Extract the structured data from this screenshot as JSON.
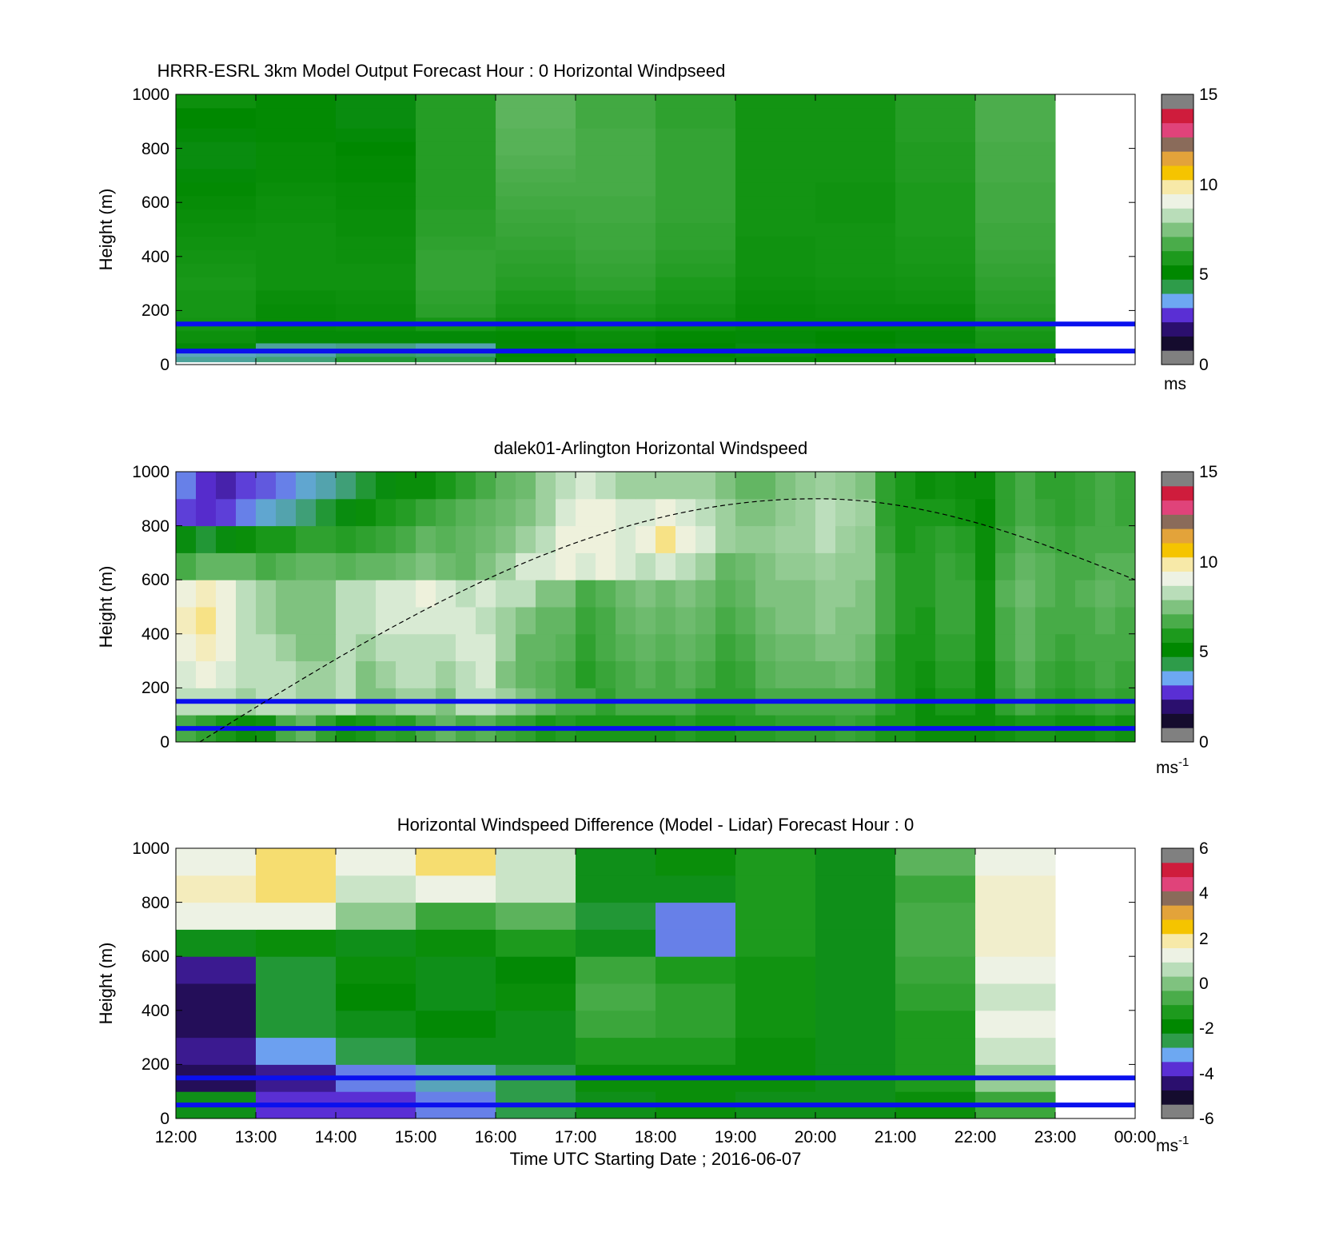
{
  "colors": {
    "ref_line": "#0a10ee",
    "frame": "#000000",
    "na_color": "#ffffff",
    "cmap_speed": [
      "#808080",
      "#150c2e",
      "#2b0f6e",
      "#5a2fd4",
      "#6da8f2",
      "#2e9c4a",
      "#008800",
      "#1d9a1d",
      "#4aac4a",
      "#7fc27f",
      "#b9ddb9",
      "#edf2e4",
      "#f7e9a8",
      "#f5c400",
      "#e3a33a",
      "#8a6b5a",
      "#e0437a",
      "#cf1c3c",
      "#808080"
    ],
    "cmap_diff": [
      "#808080",
      "#150c2e",
      "#2b0f6e",
      "#5a2fd4",
      "#6da8f2",
      "#2e9c4a",
      "#008800",
      "#1d9a1d",
      "#4aac4a",
      "#7fc27f",
      "#b9ddb9",
      "#edf2e4",
      "#f7e9a8",
      "#f5c400",
      "#e3a33a",
      "#8a6b5a",
      "#e0437a",
      "#cf1c3c",
      "#808080"
    ]
  },
  "xaxis": {
    "ticks": [
      "12:00",
      "13:00",
      "14:00",
      "15:00",
      "16:00",
      "17:00",
      "18:00",
      "19:00",
      "20:00",
      "21:00",
      "22:00",
      "23:00",
      "00:00"
    ],
    "label": "Time UTC  Starting Date ; 2016-06-07"
  },
  "chart_data": [
    {
      "type": "heatmap",
      "title": "HRRR-ESRL 3km Model Output   Forecast Hour : 0 Horizontal Windpseed",
      "ylabel": "Height (m)",
      "yticks": [
        "0",
        "200",
        "400",
        "600",
        "800",
        "1000"
      ],
      "ylim": [
        0,
        1000
      ],
      "xlim_hours": [
        12,
        24
      ],
      "colorbar": {
        "ticks": [
          "0",
          "5",
          "10",
          "15"
        ],
        "range": [
          0,
          15
        ],
        "unit": "ms",
        "unit_sup": ""
      },
      "reference_heights_m": [
        150,
        50
      ],
      "time_hours": [
        12,
        13,
        14,
        15,
        16,
        17,
        18,
        19,
        20,
        21,
        22
      ],
      "heights_m": [
        20,
        40,
        60,
        100,
        150,
        200,
        250,
        300,
        350,
        400,
        450,
        500,
        550,
        600,
        650,
        700,
        750,
        800,
        850,
        900,
        1000
      ],
      "values": [
        [
          3.3,
          3.5,
          4.0,
          3.8,
          4.8,
          5.1,
          4.9,
          4.6,
          4.8,
          4.7,
          5.3
        ],
        [
          3.1,
          3.2,
          3.6,
          3.5,
          4.7,
          5.0,
          4.8,
          4.5,
          4.7,
          4.6,
          5.3
        ],
        [
          4.6,
          3.3,
          3.4,
          3.2,
          4.6,
          4.9,
          4.7,
          4.5,
          4.6,
          4.5,
          5.3
        ],
        [
          5.1,
          4.6,
          4.6,
          4.6,
          4.8,
          5.0,
          4.8,
          4.6,
          4.7,
          4.6,
          5.4
        ],
        [
          5.3,
          4.9,
          5.0,
          5.4,
          5.1,
          5.3,
          5.1,
          4.9,
          4.9,
          4.9,
          5.6
        ],
        [
          5.4,
          4.9,
          5.0,
          5.9,
          5.4,
          5.6,
          5.3,
          4.9,
          5.0,
          5.0,
          5.8
        ],
        [
          5.4,
          5.0,
          5.1,
          6.0,
          5.6,
          5.8,
          5.5,
          5.0,
          5.1,
          5.2,
          5.9
        ],
        [
          5.5,
          5.2,
          5.2,
          6.1,
          5.8,
          6.0,
          5.6,
          5.1,
          5.2,
          5.3,
          6.0
        ],
        [
          5.4,
          5.2,
          5.2,
          6.1,
          5.9,
          6.1,
          5.8,
          5.2,
          5.3,
          5.4,
          6.1
        ],
        [
          5.3,
          5.2,
          5.1,
          6.1,
          6.0,
          6.2,
          5.9,
          5.2,
          5.3,
          5.5,
          6.2
        ],
        [
          5.2,
          5.2,
          5.1,
          6.0,
          6.1,
          6.3,
          6.0,
          5.2,
          5.3,
          5.5,
          6.3
        ],
        [
          5.1,
          5.2,
          5.0,
          5.9,
          6.2,
          6.3,
          6.0,
          5.3,
          5.3,
          5.6,
          6.3
        ],
        [
          5.0,
          5.1,
          5.0,
          5.9,
          6.3,
          6.4,
          6.1,
          5.3,
          5.2,
          5.6,
          6.4
        ],
        [
          4.9,
          5.1,
          4.9,
          5.8,
          6.4,
          6.4,
          6.1,
          5.3,
          5.2,
          5.6,
          6.4
        ],
        [
          4.8,
          5.0,
          4.9,
          5.8,
          6.5,
          6.5,
          6.1,
          5.3,
          5.2,
          5.6,
          6.4
        ],
        [
          4.6,
          4.9,
          4.8,
          5.8,
          6.6,
          6.5,
          6.1,
          5.3,
          5.3,
          5.7,
          6.5
        ],
        [
          4.5,
          4.9,
          4.8,
          5.8,
          6.7,
          6.5,
          6.1,
          5.3,
          5.3,
          5.7,
          6.5
        ],
        [
          4.5,
          4.9,
          4.7,
          5.8,
          6.8,
          6.5,
          6.1,
          5.3,
          5.3,
          5.7,
          6.5
        ],
        [
          4.6,
          4.8,
          4.6,
          5.8,
          6.8,
          6.5,
          6.1,
          5.3,
          5.3,
          5.8,
          6.6
        ],
        [
          4.7,
          4.8,
          4.5,
          5.8,
          6.9,
          6.4,
          6.0,
          5.3,
          5.3,
          5.8,
          6.6
        ],
        [
          5.1,
          4.8,
          4.5,
          5.8,
          6.9,
          6.4,
          6.0,
          5.3,
          5.3,
          5.8,
          6.6
        ]
      ]
    },
    {
      "type": "heatmap",
      "title": "dalek01-Arlington  Horizontal Windspeed",
      "ylabel": "Height (m)",
      "yticks": [
        "0",
        "200",
        "400",
        "600",
        "800",
        "1000"
      ],
      "ylim": [
        0,
        1000
      ],
      "xlim_hours": [
        12,
        24
      ],
      "colorbar": {
        "ticks": [
          "0",
          "5",
          "10",
          "15"
        ],
        "range": [
          0,
          15
        ],
        "unit": "ms",
        "unit_sup": "-1"
      },
      "reference_heights_m": [
        150,
        50
      ],
      "curve": {
        "style": "dashed",
        "start": [
          12.3,
          0
        ],
        "peak": [
          20.0,
          900
        ],
        "end": [
          24.0,
          600
        ]
      },
      "time_hours": [
        12.0,
        12.25,
        12.5,
        12.75,
        13.0,
        13.25,
        13.5,
        13.75,
        14.0,
        14.25,
        14.5,
        14.75,
        15.0,
        15.25,
        15.5,
        15.75,
        16.0,
        16.25,
        16.5,
        16.75,
        17.0,
        17.25,
        17.5,
        17.75,
        18.0,
        18.25,
        18.5,
        18.75,
        19.0,
        19.25,
        19.5,
        19.75,
        20.0,
        20.25,
        20.5,
        20.75,
        21.0,
        21.25,
        21.5,
        21.75,
        22.0,
        22.25,
        22.5,
        22.75,
        23.0,
        23.25,
        23.5,
        23.75
      ],
      "heights_m": [
        50,
        150,
        250,
        350,
        450,
        550,
        650,
        750,
        850,
        950
      ],
      "values": [
        [
          6.5,
          6.0,
          5.5,
          5.0,
          5.2,
          6.5,
          7.0,
          6.0,
          5.2,
          5.5,
          6.0,
          5.8,
          6.5,
          7.0,
          6.5,
          6.8,
          6.3,
          6.0,
          5.5,
          5.8,
          5.5,
          5.5,
          5.5,
          5.5,
          5.5,
          5.8,
          5.5,
          5.5,
          5.8,
          5.8,
          6.0,
          6.0,
          6.0,
          6.2,
          6.0,
          5.5,
          5.5,
          5.0,
          5.0,
          5.0,
          5.0,
          5.2,
          5.5,
          5.5,
          5.2,
          5.2,
          5.5,
          5.2
        ],
        [
          8.5,
          8.5,
          8.5,
          8.0,
          8.5,
          8.5,
          8.0,
          8.0,
          8.5,
          7.5,
          7.5,
          8.0,
          8.0,
          7.5,
          8.5,
          8.5,
          8.0,
          7.5,
          7.0,
          6.5,
          6.5,
          6.0,
          6.5,
          6.5,
          6.5,
          6.5,
          6.0,
          6.0,
          6.0,
          6.5,
          6.5,
          6.5,
          6.5,
          6.5,
          6.5,
          6.0,
          5.5,
          5.0,
          5.5,
          5.5,
          5.0,
          6.0,
          6.5,
          6.0,
          5.8,
          6.0,
          6.2,
          6.0
        ],
        [
          9.0,
          9.5,
          9.0,
          8.5,
          8.5,
          8.5,
          8.0,
          8.0,
          8.5,
          7.5,
          8.0,
          8.5,
          8.5,
          8.0,
          8.5,
          9.0,
          7.5,
          7.0,
          6.8,
          6.5,
          5.8,
          6.2,
          6.5,
          6.8,
          6.5,
          6.8,
          6.5,
          6.0,
          6.2,
          6.8,
          7.0,
          7.0,
          7.0,
          7.2,
          7.0,
          6.0,
          5.5,
          5.2,
          5.8,
          5.8,
          5.0,
          6.2,
          6.8,
          6.2,
          6.0,
          6.2,
          6.5,
          6.2
        ],
        [
          9.5,
          10.0,
          9.5,
          8.5,
          8.5,
          8.0,
          7.5,
          7.5,
          8.5,
          8.0,
          8.5,
          8.5,
          8.5,
          8.5,
          9.0,
          9.0,
          8.0,
          7.0,
          7.0,
          6.8,
          6.0,
          6.5,
          6.8,
          7.0,
          6.8,
          7.0,
          6.8,
          6.2,
          6.5,
          7.0,
          7.2,
          7.2,
          7.5,
          7.5,
          7.2,
          6.2,
          5.5,
          5.5,
          6.0,
          6.0,
          5.2,
          6.5,
          7.0,
          6.5,
          6.2,
          6.5,
          6.5,
          6.5
        ],
        [
          10.0,
          10.5,
          9.5,
          8.5,
          8.0,
          7.5,
          7.5,
          7.5,
          8.5,
          8.5,
          9.0,
          9.0,
          9.0,
          9.0,
          9.0,
          8.5,
          8.0,
          7.5,
          7.0,
          7.0,
          6.2,
          6.5,
          7.0,
          7.2,
          7.0,
          7.2,
          7.0,
          6.5,
          6.8,
          7.2,
          7.5,
          7.5,
          7.8,
          7.5,
          7.5,
          6.5,
          5.8,
          5.5,
          6.2,
          6.2,
          5.2,
          6.5,
          7.0,
          6.5,
          6.5,
          6.5,
          6.8,
          6.5
        ],
        [
          9.5,
          10.0,
          9.5,
          8.5,
          8.0,
          7.5,
          7.5,
          7.5,
          8.5,
          8.5,
          9.0,
          9.0,
          9.5,
          9.0,
          8.5,
          9.0,
          8.5,
          8.5,
          7.5,
          7.5,
          6.5,
          6.8,
          7.2,
          7.5,
          7.2,
          7.5,
          7.2,
          6.8,
          7.0,
          7.5,
          7.5,
          7.5,
          7.8,
          7.8,
          7.5,
          6.5,
          5.8,
          5.8,
          6.2,
          6.2,
          5.2,
          6.8,
          7.2,
          6.8,
          6.5,
          6.8,
          7.0,
          6.8
        ],
        [
          6.5,
          7.0,
          7.0,
          7.0,
          6.5,
          6.8,
          7.0,
          7.0,
          6.8,
          7.0,
          7.0,
          7.2,
          7.5,
          7.2,
          7.0,
          7.5,
          8.0,
          9.0,
          9.0,
          9.5,
          9.0,
          9.5,
          9.0,
          8.5,
          9.0,
          8.5,
          8.0,
          7.0,
          7.2,
          7.5,
          7.8,
          7.8,
          8.0,
          7.8,
          7.8,
          6.5,
          5.8,
          5.8,
          6.2,
          6.0,
          5.0,
          6.5,
          7.0,
          6.8,
          6.5,
          6.5,
          6.8,
          6.8
        ],
        [
          4.5,
          4.0,
          4.5,
          5.0,
          5.5,
          5.5,
          6.0,
          6.0,
          5.8,
          6.0,
          6.2,
          6.5,
          7.0,
          6.8,
          7.0,
          7.2,
          7.5,
          8.0,
          8.5,
          9.5,
          9.5,
          9.5,
          9.0,
          9.5,
          10.5,
          9.5,
          9.0,
          8.0,
          7.8,
          7.8,
          8.0,
          8.0,
          8.5,
          8.0,
          7.8,
          6.2,
          5.5,
          5.8,
          6.0,
          5.8,
          5.0,
          6.2,
          6.8,
          6.5,
          6.2,
          6.5,
          6.5,
          6.5
        ],
        [
          2.0,
          1.8,
          2.0,
          2.5,
          3.0,
          3.2,
          3.5,
          4.0,
          4.5,
          5.0,
          5.5,
          5.8,
          6.2,
          6.5,
          6.8,
          7.0,
          7.2,
          7.5,
          8.0,
          9.0,
          9.5,
          9.5,
          9.0,
          9.0,
          9.5,
          9.0,
          8.5,
          8.0,
          7.5,
          7.5,
          7.8,
          8.0,
          8.5,
          8.2,
          8.0,
          6.0,
          5.5,
          5.5,
          5.5,
          5.2,
          4.8,
          6.0,
          6.5,
          6.2,
          6.0,
          6.2,
          6.5,
          6.2
        ],
        [
          2.5,
          1.8,
          1.5,
          2.0,
          2.2,
          2.5,
          3.0,
          3.2,
          3.5,
          4.0,
          4.5,
          5.0,
          5.0,
          5.5,
          6.0,
          6.5,
          7.0,
          7.2,
          8.0,
          8.5,
          9.0,
          8.5,
          8.0,
          8.0,
          8.0,
          8.0,
          8.0,
          7.5,
          7.0,
          7.0,
          7.5,
          7.8,
          8.0,
          7.8,
          7.5,
          6.0,
          5.5,
          5.0,
          5.2,
          5.0,
          5.0,
          6.0,
          6.5,
          6.0,
          6.0,
          6.2,
          6.5,
          6.2
        ]
      ]
    },
    {
      "type": "heatmap",
      "title": "Horizontal Windspeed Difference (Model - Lidar) Forecast Hour : 0",
      "ylabel": "Height (m)",
      "yticks": [
        "0",
        "200",
        "400",
        "600",
        "800",
        "1000"
      ],
      "ylim": [
        0,
        1000
      ],
      "xlim_hours": [
        12,
        24
      ],
      "colorbar": {
        "ticks": [
          "-6",
          "-4",
          "-2",
          "0",
          "2",
          "4",
          "6"
        ],
        "range": [
          -6,
          6
        ],
        "unit": "ms",
        "unit_sup": "-1"
      },
      "reference_heights_m": [
        150,
        50
      ],
      "time_hours": [
        12,
        13,
        14,
        15,
        16,
        17,
        18,
        19,
        20,
        21,
        22
      ],
      "heights_m": [
        50,
        150,
        250,
        350,
        450,
        550,
        650,
        750,
        850,
        950
      ],
      "values": [
        [
          -2.5,
          -4.5,
          -4.5,
          -4.0,
          -3.0,
          -2.5,
          -2.0,
          -2.5,
          -2.5,
          -2.0,
          -1.0
        ],
        [
          -5.5,
          -5.0,
          -4.0,
          -3.5,
          -3.0,
          -2.0,
          -2.0,
          -2.0,
          -2.5,
          -1.5,
          0.3
        ],
        [
          -5.0,
          -3.8,
          -3.0,
          -2.5,
          -2.5,
          -1.5,
          -1.5,
          -2.0,
          -2.5,
          -1.5,
          1.0
        ],
        [
          -5.5,
          -2.8,
          -2.5,
          -2.3,
          -2.5,
          -1.0,
          -1.2,
          -1.8,
          -2.5,
          -1.5,
          1.5
        ],
        [
          -5.5,
          -2.8,
          -2.2,
          -2.5,
          -2.0,
          -0.8,
          -1.2,
          -1.8,
          -2.5,
          -1.2,
          1.0
        ],
        [
          -5.0,
          -2.8,
          -2.0,
          -2.5,
          -2.3,
          -1.0,
          -1.5,
          -1.8,
          -2.5,
          -1.0,
          1.5
        ],
        [
          -2.5,
          -2.0,
          -2.5,
          -2.0,
          -1.5,
          -2.5,
          -4.0,
          -1.5,
          -2.5,
          -0.8,
          1.8
        ],
        [
          1.5,
          1.5,
          0.2,
          -1.0,
          -0.5,
          -2.8,
          -4.0,
          -1.5,
          -2.5,
          -0.8,
          1.8
        ],
        [
          2.0,
          2.5,
          1.0,
          1.5,
          1.0,
          -2.5,
          -2.5,
          -1.5,
          -2.5,
          -1.0,
          1.8
        ],
        [
          1.5,
          2.5,
          1.5,
          2.5,
          1.0,
          -2.5,
          -2.0,
          -1.5,
          -2.5,
          -0.5,
          1.5
        ]
      ]
    }
  ]
}
